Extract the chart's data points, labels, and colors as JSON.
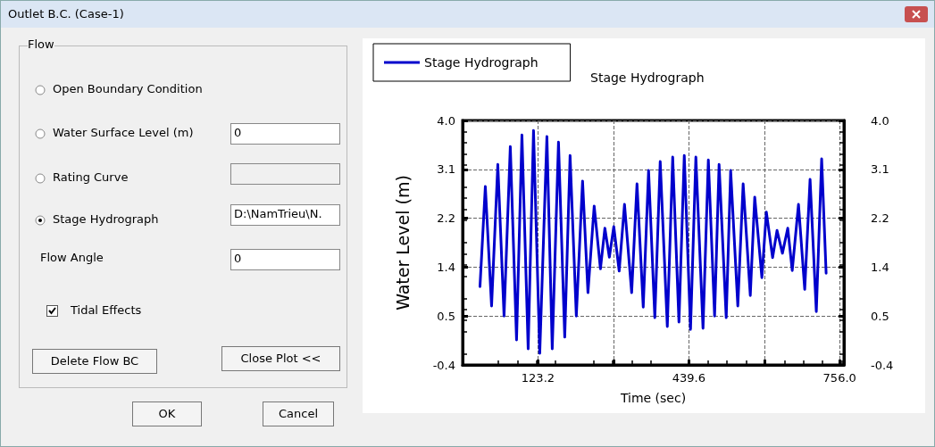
{
  "chart_data": {
    "type": "line",
    "title": "Stage Hydrograph",
    "xlabel": "Time (sec)",
    "ylabel": "Water Level (m)",
    "annotations": [
      "Outlet B.C. (Case-1)",
      "Flow",
      "Open Boundary Condition",
      "Water Surface Level (m)",
      "0",
      "Rating Curve",
      "Stage Hydrograph",
      "D:\\NamTrieu\\N.",
      "Flow Angle",
      "0",
      "Tidal Effects",
      "Delete Flow BC",
      "Close Plot <<",
      "OK",
      "Cancel"
    ],
    "x": [
      1.5,
      12.7,
      25.8,
      38.9,
      52.0,
      65.1,
      78.2,
      89.5,
      102.6,
      113.8,
      126.9,
      141.9,
      153.1,
      166.2,
      179.3,
      190.5,
      203.6,
      216.7,
      228.0,
      241.1,
      254.2,
      263.5,
      272.9,
      282.2,
      293.5,
      304.7,
      319.7,
      330.9,
      344.0,
      355.2,
      368.3,
      379.6,
      394.5,
      405.8,
      418.9,
      430.1,
      443.2,
      454.4,
      469.4,
      480.6,
      493.7,
      503.1,
      518.1,
      527.4,
      542.4,
      553.6,
      568.6,
      577.9,
      592.9,
      602.3,
      615.4,
      624.7,
      636.0,
      647.2,
      656.6,
      669.7,
      682.8,
      694.0,
      707.1,
      718.3,
      727.7
    ],
    "series": [
      {
        "name": "Stage Hydrograph",
        "color": "#0000cc",
        "values": [
          1.01,
          2.81,
          0.66,
          3.21,
          0.48,
          3.53,
          0.05,
          3.74,
          -0.11,
          3.82,
          -0.19,
          3.71,
          -0.11,
          3.61,
          0.1,
          3.37,
          0.48,
          2.91,
          0.9,
          2.46,
          1.33,
          2.06,
          1.54,
          2.09,
          1.29,
          2.49,
          0.9,
          2.86,
          0.64,
          3.1,
          0.45,
          3.26,
          0.29,
          3.34,
          0.37,
          3.37,
          0.24,
          3.34,
          0.26,
          3.29,
          0.48,
          3.21,
          0.45,
          3.1,
          0.66,
          2.86,
          0.85,
          2.62,
          1.17,
          2.35,
          1.53,
          2.02,
          1.61,
          2.06,
          1.3,
          2.49,
          0.96,
          2.94,
          0.56,
          3.31,
          1.25
        ]
      }
    ],
    "xlim": [
      -35,
      765
    ],
    "xticks": [
      {
        "value": -35,
        "label": null
      },
      123.2,
      {
        "value": 281.4,
        "label": null
      },
      439.6,
      {
        "value": 597.8,
        "label": null
      },
      {
        "value": 756,
        "label": "756.0"
      }
    ],
    "ylim": [
      -0.4,
      4.0
    ],
    "yticks": [
      -0.4,
      {
        "value": 0.48,
        "label": "0.5"
      },
      {
        "value": 1.36,
        "label": "1.4"
      },
      {
        "value": 2.24,
        "label": "2.2"
      },
      {
        "value": 3.12,
        "label": "3.1"
      },
      {
        "value": 4.0,
        "label": "4.0"
      }
    ],
    "y2lim": [
      -0.4,
      4.0
    ],
    "y2ticks": [
      -0.4,
      {
        "value": 0.48,
        "label": "0.5"
      },
      {
        "value": 1.36,
        "label": "1.4"
      },
      {
        "value": 2.24,
        "label": "2.2"
      },
      {
        "value": 3.12,
        "label": "3.1"
      },
      {
        "value": 4.0,
        "label": "4.0"
      }
    ],
    "grid": true,
    "legend": "top left",
    "marker": "none",
    "line_style": "solid"
  }
}
